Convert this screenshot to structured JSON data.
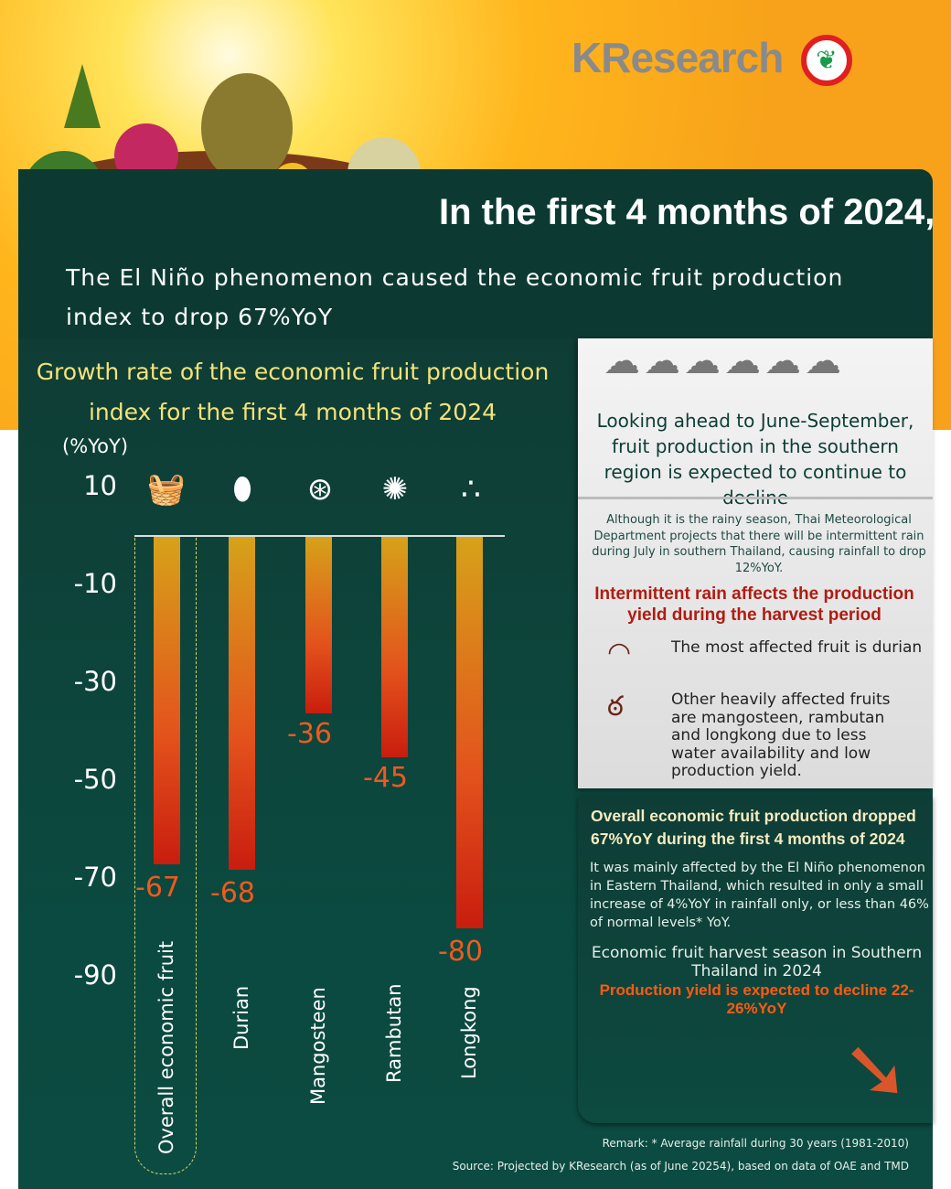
{
  "brand": {
    "logo": "KResearch"
  },
  "header": {
    "title": "In the first 4 months of 2024,",
    "subtitle": "The El Niño phenomenon caused the economic fruit production index to drop 67%YoY"
  },
  "chart_data": {
    "type": "bar",
    "title": "Growth rate of the economic fruit production index for the first 4 months of 2024",
    "ylabel": "(%YoY)",
    "categories": [
      "Overall economic fruit",
      "Durian",
      "Mangosteen",
      "Rambutan",
      "Longkong"
    ],
    "values": [
      -67,
      -68,
      -36,
      -45,
      -80
    ],
    "value_labels": [
      "-67",
      "-68",
      "-36",
      "-45",
      "-80"
    ],
    "yticks": [
      "10",
      "-10",
      "-30",
      "-50",
      "-70",
      "-90"
    ],
    "ylim": [
      -90,
      10
    ],
    "grid": false,
    "bar_color": "#e3531c"
  },
  "right_panel": {
    "heading": "Looking ahead to June-September, fruit production in the southern region is expected to continue to decline",
    "paragraph": "Although it is the rainy season, Thai Meteorological Department projects that there will be intermittent rain during July in southern Thailand, causing rainfall to drop 12%YoY.",
    "red_heading": "Intermittent rain affects the production yield during the harvest period",
    "item1": "The most affected fruit is durian",
    "item2": "Other heavily affected fruits are mangosteen, rambutan and longkong due to less water availability and low production yield."
  },
  "green_panel": {
    "heading": "Overall economic fruit production dropped 67%YoY during the first 4 months of 2024",
    "paragraph": "It was mainly affected by the El Niño phenomenon in Eastern Thailand, which resulted in only a small increase of 4%YoY in rainfall only, or less than 46% of normal levels* YoY.",
    "caption": "Economic fruit harvest season in Southern Thailand in 2024",
    "outlook": "Production yield is expected to decline 22-26%YoY"
  },
  "footer": {
    "remark": "Remark: * Average rainfall during 30 years (1981-2010)",
    "source": "Source: Projected by KResearch (as of June 20254), based on data of OAE and TMD"
  }
}
